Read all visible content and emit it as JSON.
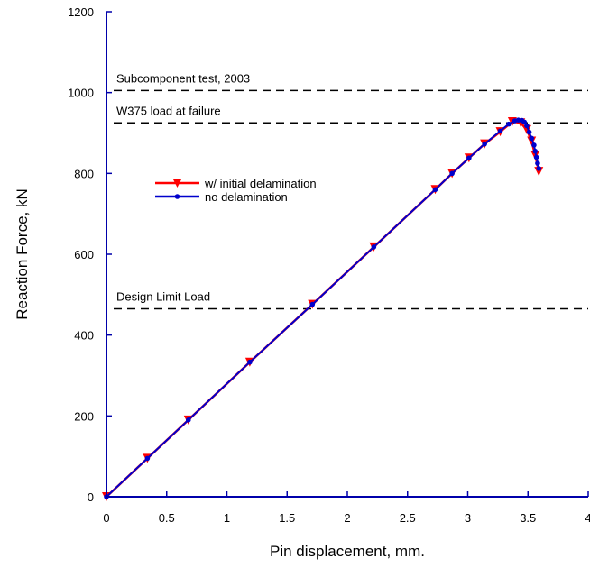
{
  "chart_data": {
    "type": "line",
    "xlabel": "Pin displacement, mm.",
    "ylabel": "Reaction Force, kN",
    "xlim": [
      0,
      4
    ],
    "ylim": [
      0,
      1200
    ],
    "xticks": [
      0,
      0.5,
      1,
      1.5,
      2,
      2.5,
      3,
      3.5,
      4
    ],
    "xtick_labels": [
      "0",
      "0.5",
      "1",
      "1.5",
      "2",
      "2.5",
      "3",
      "3.5",
      "4"
    ],
    "yticks": [
      0,
      200,
      400,
      600,
      800,
      1000,
      1200
    ],
    "ytick_labels": [
      "0",
      "200",
      "400",
      "600",
      "800",
      "1000",
      "1200"
    ],
    "grid": false,
    "legend_position": "middle-left",
    "reference_lines": [
      {
        "label": "Subcomponent test, 2003",
        "y": 1005
      },
      {
        "label": "W375 load at failure",
        "y": 925
      },
      {
        "label": "Design Limit Load",
        "y": 465
      }
    ],
    "series": [
      {
        "name": "w/ initial delamination",
        "color": "#ff0000",
        "marker": "triangle-down",
        "x": [
          0,
          0.34,
          0.68,
          1.19,
          1.71,
          2.22,
          2.73,
          2.87,
          3.01,
          3.14,
          3.27,
          3.37,
          3.44,
          3.49,
          3.53,
          3.56,
          3.59
        ],
        "y": [
          0,
          95,
          190,
          333,
          476,
          618,
          760,
          800,
          838,
          873,
          903,
          928,
          925,
          908,
          880,
          845,
          805
        ]
      },
      {
        "name": "no delamination",
        "color": "#0000cc",
        "marker": "circle",
        "x": [
          0,
          0.34,
          0.68,
          1.19,
          1.71,
          2.22,
          2.73,
          2.87,
          3.01,
          3.14,
          3.27,
          3.34,
          3.39,
          3.42,
          3.45,
          3.47,
          3.49,
          3.51,
          3.53,
          3.55,
          3.56,
          3.57,
          3.58,
          3.59
        ],
        "y": [
          0,
          95,
          190,
          333,
          476,
          618,
          760,
          800,
          838,
          873,
          905,
          922,
          930,
          932,
          931,
          927,
          918,
          902,
          887,
          870,
          855,
          840,
          825,
          812
        ]
      }
    ]
  }
}
